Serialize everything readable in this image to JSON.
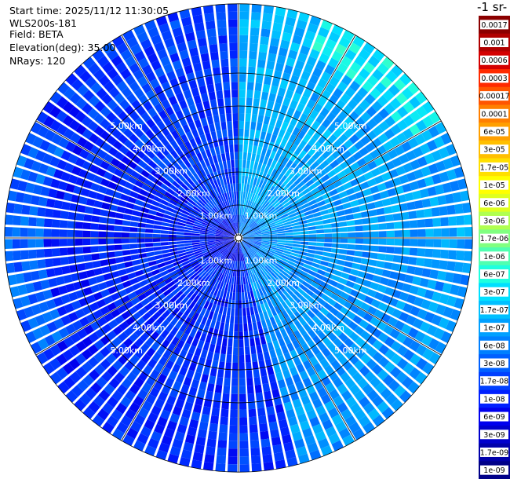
{
  "header": {
    "start_time": "Start time: 2025/11/12 11:30:05",
    "instrument": "WLS200s-181",
    "field": "Field: BETA",
    "elevation": "Elevation(deg): 35.00",
    "nrays": "NRays: 120"
  },
  "colorbar": {
    "title": "-1 sr-",
    "labels": [
      "0.0017",
      "0.001",
      "0.0006",
      "0.0003",
      "0.00017",
      "0.0001",
      "6e-05",
      "3e-05",
      "1.7e-05",
      "1e-05",
      "6e-06",
      "3e-06",
      "1.7e-06",
      "1e-06",
      "6e-07",
      "3e-07",
      "1.7e-07",
      "1e-07",
      "6e-08",
      "3e-08",
      "1.7e-08",
      "1e-08",
      "6e-09",
      "3e-09",
      "1.7e-09",
      "1e-09"
    ],
    "colors": [
      "#8b0000",
      "#b00000",
      "#d40000",
      "#ff2a00",
      "#ff5500",
      "#ff7f00",
      "#ff9f00",
      "#ffbf00",
      "#ffdf00",
      "#ffff00",
      "#dfff1f",
      "#b0ff50",
      "#80ff80",
      "#50ffb0",
      "#1fffdf",
      "#00e0ff",
      "#00c0ff",
      "#00a0ff",
      "#0080ff",
      "#0060ff",
      "#0040ff",
      "#0020ff",
      "#0000ee",
      "#0000cc",
      "#0000aa",
      "#000088"
    ]
  },
  "chart_data": {
    "type": "heatmap",
    "projection": "polar PPI",
    "field": "BETA",
    "elevation_deg": 35.0,
    "n_rays": 120,
    "range_rings_km": [
      1.0,
      2.0,
      3.0,
      4.0,
      5.0
    ],
    "range_ring_labels": [
      "1.00km",
      "2.00km",
      "3.00km",
      "4.00km",
      "5.00km"
    ],
    "max_range_km": 7.1,
    "colorscale": "log10",
    "value_range": [
      1e-09,
      0.0017
    ],
    "sector_levels": [
      {
        "az_from": 0,
        "az_to": 45,
        "log10_beta": -6.9
      },
      {
        "az_from": 45,
        "az_to": 90,
        "log10_beta": -7.0
      },
      {
        "az_from": 90,
        "az_to": 135,
        "log10_beta": -7.1
      },
      {
        "az_from": 135,
        "az_to": 165,
        "log10_beta": -7.1
      },
      {
        "az_from": 165,
        "az_to": 230,
        "log10_beta": -7.9
      },
      {
        "az_from": 230,
        "az_to": 310,
        "log10_beta": -8.0
      },
      {
        "az_from": 310,
        "az_to": 360,
        "log10_beta": -7.8
      }
    ]
  }
}
